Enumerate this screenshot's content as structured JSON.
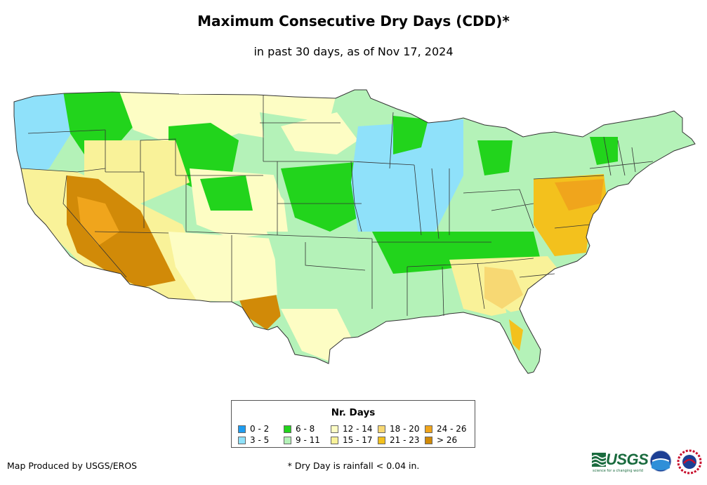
{
  "title": "Maximum Consecutive Dry Days (CDD)*",
  "subtitle": "in past 30 days, as of Nov 17, 2024",
  "legend": {
    "title": "Nr. Days",
    "classes": [
      {
        "label": "0 - 2",
        "color": "#1e9cf0"
      },
      {
        "label": "3 - 5",
        "color": "#8fe1fa"
      },
      {
        "label": "6 - 8",
        "color": "#22d41c"
      },
      {
        "label": "9 - 11",
        "color": "#b4f2b8"
      },
      {
        "label": "12 - 14",
        "color": "#fdfdc4"
      },
      {
        "label": "15 - 17",
        "color": "#f9f299"
      },
      {
        "label": "18 - 20",
        "color": "#f7d873"
      },
      {
        "label": "21 - 23",
        "color": "#f3c11d"
      },
      {
        "label": "24 - 26",
        "color": "#f0a51c"
      },
      {
        "label": "> 26",
        "color": "#d18a08"
      }
    ]
  },
  "credit": "Map Produced by USGS/EROS",
  "footnote": "* Dry Day is rainfall < 0.04 in.",
  "logos": {
    "usgs_text": "USGS",
    "usgs_tagline": "science for a changing world",
    "noaa_text": "noaa",
    "nws_text": "NWS"
  },
  "map_regions": [
    {
      "name": "pacific-northwest",
      "class": "3 - 5"
    },
    {
      "name": "northern-rockies",
      "class": "6 - 8"
    },
    {
      "name": "northern-plains",
      "class": "12 - 14"
    },
    {
      "name": "great-basin",
      "class": "15 - 17"
    },
    {
      "name": "desert-southwest",
      "class": "> 26"
    },
    {
      "name": "west-texas",
      "class": "> 26"
    },
    {
      "name": "southern-plains",
      "class": "9 - 11"
    },
    {
      "name": "central-plains",
      "class": "6 - 8"
    },
    {
      "name": "upper-midwest",
      "class": "3 - 5"
    },
    {
      "name": "mississippi-valley",
      "class": "3 - 5"
    },
    {
      "name": "tennessee-valley",
      "class": "6 - 8"
    },
    {
      "name": "southeast",
      "class": "15 - 17"
    },
    {
      "name": "mid-atlantic",
      "class": "21 - 23"
    },
    {
      "name": "new-england",
      "class": "9 - 11"
    },
    {
      "name": "florida",
      "class": "9 - 11"
    }
  ]
}
